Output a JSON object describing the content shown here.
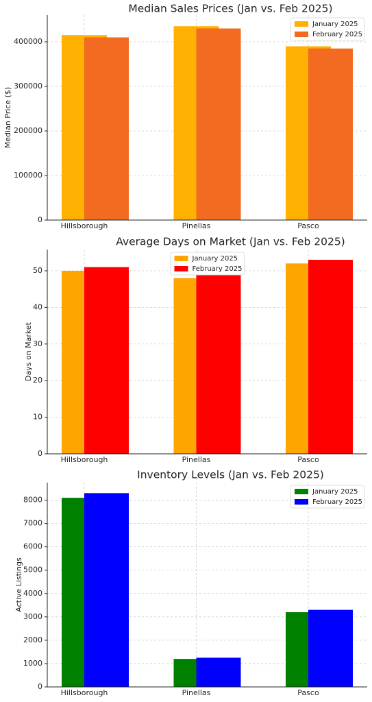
{
  "chart_data": [
    {
      "type": "bar",
      "title": "Median Sales Prices (Jan vs. Feb 2025)",
      "ylabel": "Median Price ($)",
      "categories": [
        "Hillsborough",
        "Pinellas",
        "Pasco"
      ],
      "series": [
        {
          "name": "January 2025",
          "color": "#ffb000",
          "values": [
            415000,
            435000,
            390000
          ]
        },
        {
          "name": "February 2025",
          "color": "#f26b21",
          "values": [
            410000,
            430000,
            385000
          ]
        }
      ],
      "ylim": [
        0,
        460000
      ],
      "yticks": [
        0,
        100000,
        200000,
        300000,
        400000
      ],
      "grid": true,
      "legend_loc": "upper right"
    },
    {
      "type": "bar",
      "title": "Average Days on Market (Jan vs. Feb 2025)",
      "ylabel": "Days on Market",
      "categories": [
        "Hillsborough",
        "Pinellas",
        "Pasco"
      ],
      "series": [
        {
          "name": "January 2025",
          "color": "#ffa500",
          "values": [
            50,
            48,
            52
          ]
        },
        {
          "name": "February 2025",
          "color": "#ff0000",
          "values": [
            51,
            49,
            53
          ]
        }
      ],
      "ylim": [
        0,
        55.8
      ],
      "yticks": [
        0,
        10,
        20,
        30,
        40,
        50
      ],
      "grid": true,
      "legend_loc": "upper center"
    },
    {
      "type": "bar",
      "title": "Inventory Levels (Jan vs. Feb 2025)",
      "ylabel": "Active Listings",
      "categories": [
        "Hillsborough",
        "Pinellas",
        "Pasco"
      ],
      "series": [
        {
          "name": "January 2025",
          "color": "#008000",
          "values": [
            8100,
            1200,
            3200
          ]
        },
        {
          "name": "February 2025",
          "color": "#0000ff",
          "values": [
            8300,
            1250,
            3300
          ]
        }
      ],
      "ylim": [
        0,
        8750
      ],
      "yticks": [
        0,
        1000,
        2000,
        3000,
        4000,
        5000,
        6000,
        7000,
        8000
      ],
      "grid": true,
      "legend_loc": "upper right"
    }
  ]
}
